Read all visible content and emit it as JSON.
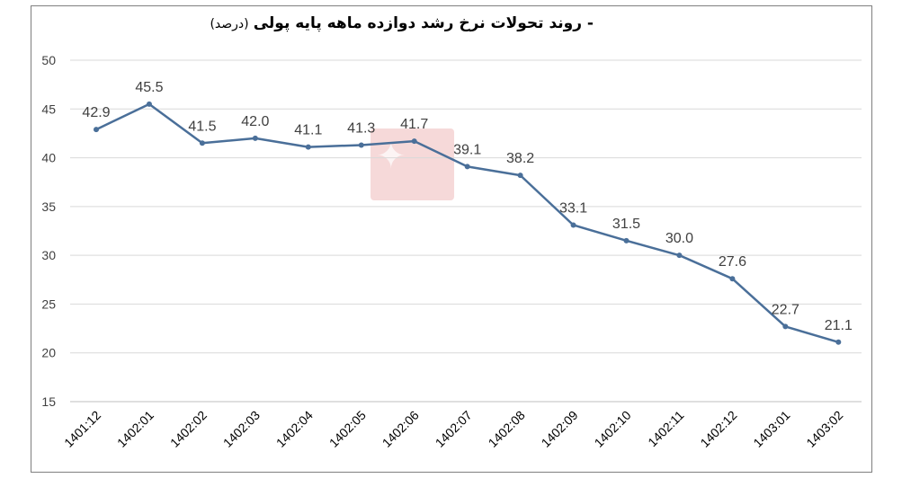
{
  "chart_data": {
    "type": "line",
    "title": "- روند تحولات نرخ رشد دوازده ماهه پایه پولی",
    "title_unit": "(درصد)",
    "categories": [
      "1401:12",
      "1402:01",
      "1402:02",
      "1402:03",
      "1402:04",
      "1402:05",
      "1402:06",
      "1402:07",
      "1402:08",
      "1402:09",
      "1402:10",
      "1402:11",
      "1402:12",
      "1403:01",
      "1403:02"
    ],
    "series": [
      {
        "values": [
          42.9,
          45.5,
          41.5,
          42.0,
          41.1,
          41.3,
          41.7,
          39.1,
          38.2,
          33.1,
          31.5,
          30.0,
          27.6,
          22.7,
          21.1
        ]
      }
    ],
    "data_labels": [
      "42.9",
      "45.5",
      "41.5",
      "42.0",
      "41.1",
      "41.3",
      "41.7",
      "39.1",
      "38.2",
      "33.1",
      "31.5",
      "30.0",
      "27.6",
      "22.7",
      "21.1"
    ],
    "yticks": [
      "15",
      "20",
      "25",
      "30",
      "35",
      "40",
      "45",
      "50"
    ],
    "ylim": [
      15,
      50
    ],
    "grid": true,
    "xlabel": "",
    "ylabel": "",
    "colors": {
      "line": "#4a6f99",
      "marker": "#4a6f99",
      "grid": "#d9d9d9",
      "last_label": "#c0504d",
      "label": "#404040"
    }
  }
}
